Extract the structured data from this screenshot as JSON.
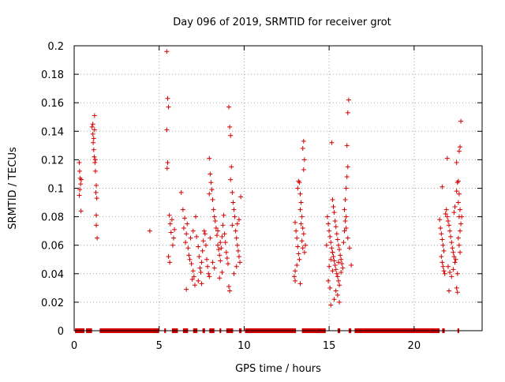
{
  "chart_data": {
    "type": "scatter",
    "title": "Day 096 of 2019, SRMTID for receiver grot",
    "xlabel": "GPS time / hours",
    "ylabel": "SRMTID / TECUs",
    "xlim": [
      0,
      24
    ],
    "ylim": [
      0,
      0.2
    ],
    "xticks": [
      0,
      5,
      10,
      15,
      20
    ],
    "yticks": [
      0,
      0.02,
      0.04,
      0.06,
      0.08,
      0.1,
      0.12,
      0.14,
      0.16,
      0.18,
      0.2
    ],
    "grid": true,
    "marker": "+",
    "color": "#d40000",
    "series": [
      {
        "values": [
          [
            0.3,
            0.118
          ],
          [
            0.32,
            0.112
          ],
          [
            0.35,
            0.107
          ],
          [
            0.38,
            0.103
          ],
          [
            0.3,
            0.095
          ],
          [
            0.4,
            0.084
          ],
          [
            0.33,
            0.099
          ],
          [
            0.42,
            0.106
          ],
          [
            1.05,
            0.143
          ],
          [
            1.1,
            0.138
          ],
          [
            1.12,
            0.132
          ],
          [
            1.15,
            0.127
          ],
          [
            1.2,
            0.151
          ],
          [
            1.18,
            0.122
          ],
          [
            1.22,
            0.118
          ],
          [
            1.25,
            0.112
          ],
          [
            1.1,
            0.145
          ],
          [
            1.3,
            0.102
          ],
          [
            1.28,
            0.097
          ],
          [
            1.33,
            0.093
          ],
          [
            1.3,
            0.081
          ],
          [
            1.3,
            0.074
          ],
          [
            1.35,
            0.065
          ],
          [
            1.2,
            0.141
          ],
          [
            1.15,
            0.135
          ],
          [
            1.25,
            0.12
          ],
          [
            4.45,
            0.07
          ],
          [
            5.45,
            0.196
          ],
          [
            5.5,
            0.163
          ],
          [
            5.55,
            0.157
          ],
          [
            5.45,
            0.141
          ],
          [
            5.5,
            0.118
          ],
          [
            5.47,
            0.114
          ],
          [
            5.6,
            0.081
          ],
          [
            5.65,
            0.075
          ],
          [
            5.7,
            0.069
          ],
          [
            5.8,
            0.06
          ],
          [
            5.55,
            0.052
          ],
          [
            5.62,
            0.048
          ],
          [
            5.75,
            0.078
          ],
          [
            5.85,
            0.065
          ],
          [
            5.9,
            0.071
          ],
          [
            6.3,
            0.097
          ],
          [
            6.4,
            0.085
          ],
          [
            6.5,
            0.079
          ],
          [
            6.45,
            0.072
          ],
          [
            6.6,
            0.068
          ],
          [
            6.55,
            0.062
          ],
          [
            6.7,
            0.058
          ],
          [
            6.75,
            0.053
          ],
          [
            6.8,
            0.05
          ],
          [
            6.9,
            0.047
          ],
          [
            7.0,
            0.042
          ],
          [
            7.05,
            0.038
          ],
          [
            6.95,
            0.036
          ],
          [
            7.1,
            0.032
          ],
          [
            6.85,
            0.065
          ],
          [
            7.0,
            0.07
          ],
          [
            6.65,
            0.075
          ],
          [
            7.15,
            0.08
          ],
          [
            7.2,
            0.066
          ],
          [
            7.3,
            0.059
          ],
          [
            7.35,
            0.052
          ],
          [
            7.4,
            0.044
          ],
          [
            7.45,
            0.041
          ],
          [
            7.5,
            0.048
          ],
          [
            7.55,
            0.056
          ],
          [
            7.6,
            0.063
          ],
          [
            7.65,
            0.07
          ],
          [
            7.7,
            0.068
          ],
          [
            7.75,
            0.06
          ],
          [
            7.8,
            0.05
          ],
          [
            7.85,
            0.045
          ],
          [
            7.9,
            0.04
          ],
          [
            7.95,
            0.038
          ],
          [
            7.3,
            0.035
          ],
          [
            7.5,
            0.033
          ],
          [
            6.6,
            0.029
          ],
          [
            7.95,
            0.121
          ],
          [
            8.0,
            0.11
          ],
          [
            8.05,
            0.104
          ],
          [
            8.1,
            0.099
          ],
          [
            7.95,
            0.096
          ],
          [
            8.15,
            0.092
          ],
          [
            8.2,
            0.085
          ],
          [
            8.25,
            0.08
          ],
          [
            8.3,
            0.077
          ],
          [
            8.35,
            0.072
          ],
          [
            8.4,
            0.067
          ],
          [
            8.45,
            0.06
          ],
          [
            8.5,
            0.057
          ],
          [
            8.55,
            0.053
          ],
          [
            8.6,
            0.049
          ],
          [
            8.15,
            0.048
          ],
          [
            8.25,
            0.044
          ],
          [
            8.0,
            0.065
          ],
          [
            8.45,
            0.07
          ],
          [
            8.6,
            0.062
          ],
          [
            8.65,
            0.058
          ],
          [
            8.7,
            0.066
          ],
          [
            8.75,
            0.074
          ],
          [
            8.8,
            0.081
          ],
          [
            8.85,
            0.068
          ],
          [
            8.9,
            0.062
          ],
          [
            8.95,
            0.055
          ],
          [
            9.0,
            0.051
          ],
          [
            9.05,
            0.047
          ],
          [
            8.7,
            0.041
          ],
          [
            8.55,
            0.037
          ],
          [
            9.1,
            0.157
          ],
          [
            9.15,
            0.143
          ],
          [
            9.2,
            0.137
          ],
          [
            9.25,
            0.115
          ],
          [
            9.2,
            0.106
          ],
          [
            9.3,
            0.097
          ],
          [
            9.35,
            0.09
          ],
          [
            9.4,
            0.085
          ],
          [
            9.45,
            0.08
          ],
          [
            9.3,
            0.074
          ],
          [
            9.5,
            0.07
          ],
          [
            9.55,
            0.065
          ],
          [
            9.6,
            0.06
          ],
          [
            9.65,
            0.056
          ],
          [
            9.7,
            0.052
          ],
          [
            9.75,
            0.048
          ],
          [
            9.55,
            0.045
          ],
          [
            9.4,
            0.04
          ],
          [
            9.1,
            0.031
          ],
          [
            9.15,
            0.028
          ],
          [
            9.8,
            0.094
          ],
          [
            9.7,
            0.078
          ],
          [
            9.6,
            0.075
          ],
          [
            13.0,
            0.076
          ],
          [
            13.05,
            0.07
          ],
          [
            13.1,
            0.065
          ],
          [
            13.15,
            0.059
          ],
          [
            13.2,
            0.054
          ],
          [
            13.25,
            0.05
          ],
          [
            13.1,
            0.046
          ],
          [
            13.0,
            0.042
          ],
          [
            12.95,
            0.038
          ],
          [
            13.0,
            0.035
          ],
          [
            13.15,
            0.1
          ],
          [
            13.2,
            0.105
          ],
          [
            13.25,
            0.104
          ],
          [
            13.3,
            0.096
          ],
          [
            13.35,
            0.09
          ],
          [
            13.3,
            0.085
          ],
          [
            13.4,
            0.08
          ],
          [
            13.35,
            0.075
          ],
          [
            13.45,
            0.072
          ],
          [
            13.5,
            0.068
          ],
          [
            13.4,
            0.063
          ],
          [
            13.45,
            0.058
          ],
          [
            13.5,
            0.133
          ],
          [
            13.45,
            0.128
          ],
          [
            13.55,
            0.12
          ],
          [
            13.5,
            0.113
          ],
          [
            13.6,
            0.06
          ],
          [
            13.55,
            0.055
          ],
          [
            13.3,
            0.033
          ],
          [
            14.9,
            0.08
          ],
          [
            14.95,
            0.075
          ],
          [
            15.0,
            0.07
          ],
          [
            15.05,
            0.066
          ],
          [
            15.1,
            0.062
          ],
          [
            15.15,
            0.058
          ],
          [
            15.2,
            0.055
          ],
          [
            15.25,
            0.052
          ],
          [
            15.3,
            0.049
          ],
          [
            15.35,
            0.046
          ],
          [
            15.4,
            0.043
          ],
          [
            15.45,
            0.04
          ],
          [
            15.5,
            0.038
          ],
          [
            15.55,
            0.035
          ],
          [
            15.6,
            0.032
          ],
          [
            15.4,
            0.028
          ],
          [
            15.5,
            0.025
          ],
          [
            15.3,
            0.022
          ],
          [
            15.1,
            0.018
          ],
          [
            15.6,
            0.02
          ],
          [
            15.0,
            0.045
          ],
          [
            15.1,
            0.05
          ],
          [
            15.2,
            0.042
          ],
          [
            14.95,
            0.035
          ],
          [
            15.05,
            0.03
          ],
          [
            15.15,
            0.132
          ],
          [
            15.2,
            0.092
          ],
          [
            15.25,
            0.087
          ],
          [
            15.3,
            0.083
          ],
          [
            15.35,
            0.077
          ],
          [
            15.4,
            0.073
          ],
          [
            15.45,
            0.068
          ],
          [
            15.5,
            0.064
          ],
          [
            15.55,
            0.06
          ],
          [
            15.6,
            0.057
          ],
          [
            15.65,
            0.053
          ],
          [
            15.7,
            0.05
          ],
          [
            15.75,
            0.047
          ],
          [
            15.8,
            0.044
          ],
          [
            15.7,
            0.041
          ],
          [
            15.85,
            0.062
          ],
          [
            15.9,
            0.07
          ],
          [
            15.95,
            0.077
          ],
          [
            16.0,
            0.08
          ],
          [
            15.9,
            0.085
          ],
          [
            15.95,
            0.092
          ],
          [
            16.0,
            0.1
          ],
          [
            16.05,
            0.108
          ],
          [
            16.1,
            0.115
          ],
          [
            16.05,
            0.13
          ],
          [
            16.1,
            0.153
          ],
          [
            16.15,
            0.162
          ],
          [
            16.0,
            0.072
          ],
          [
            16.1,
            0.065
          ],
          [
            16.2,
            0.058
          ],
          [
            16.3,
            0.046
          ],
          [
            15.2,
            0.055
          ],
          [
            14.85,
            0.06
          ],
          [
            15.55,
            0.048
          ]
        ]
      },
      {
        "values": [
          [
            21.5,
            0.078
          ],
          [
            21.55,
            0.072
          ],
          [
            21.6,
            0.068
          ],
          [
            21.65,
            0.064
          ],
          [
            21.7,
            0.06
          ],
          [
            21.75,
            0.056
          ],
          [
            21.6,
            0.052
          ],
          [
            21.65,
            0.048
          ],
          [
            21.7,
            0.045
          ],
          [
            21.75,
            0.042
          ],
          [
            21.8,
            0.04
          ],
          [
            21.65,
            0.101
          ],
          [
            21.85,
            0.082
          ],
          [
            21.9,
            0.085
          ],
          [
            21.95,
            0.08
          ],
          [
            22.0,
            0.077
          ],
          [
            22.05,
            0.074
          ],
          [
            22.1,
            0.07
          ],
          [
            22.15,
            0.066
          ],
          [
            22.2,
            0.062
          ],
          [
            22.25,
            0.058
          ],
          [
            22.3,
            0.055
          ],
          [
            22.35,
            0.052
          ],
          [
            22.4,
            0.048
          ],
          [
            22.0,
            0.045
          ],
          [
            22.1,
            0.041
          ],
          [
            22.2,
            0.038
          ],
          [
            22.3,
            0.043
          ],
          [
            22.45,
            0.05
          ],
          [
            21.95,
            0.121
          ],
          [
            22.05,
            0.028
          ],
          [
            22.4,
            0.087
          ],
          [
            22.5,
            0.098
          ],
          [
            22.55,
            0.104
          ],
          [
            22.6,
            0.105
          ],
          [
            22.65,
            0.096
          ],
          [
            22.6,
            0.09
          ],
          [
            22.7,
            0.085
          ],
          [
            22.65,
            0.08
          ],
          [
            22.75,
            0.075
          ],
          [
            22.7,
            0.07
          ],
          [
            22.6,
            0.065
          ],
          [
            22.65,
            0.06
          ],
          [
            22.7,
            0.055
          ],
          [
            22.55,
            0.04
          ],
          [
            22.5,
            0.03
          ],
          [
            22.55,
            0.027
          ],
          [
            22.65,
            0.126
          ],
          [
            22.7,
            0.129
          ],
          [
            22.75,
            0.147
          ],
          [
            22.8,
            0.08
          ],
          [
            22.5,
            0.118
          ],
          [
            22.35,
            0.083
          ]
        ]
      }
    ],
    "zero_segments": [
      [
        0.05,
        0.6
      ],
      [
        0.7,
        1.05
      ],
      [
        1.5,
        5.0
      ],
      [
        5.3,
        5.4
      ],
      [
        5.75,
        6.1
      ],
      [
        6.4,
        6.7
      ],
      [
        7.0,
        7.25
      ],
      [
        7.55,
        7.7
      ],
      [
        7.95,
        8.25
      ],
      [
        8.55,
        8.65
      ],
      [
        8.95,
        9.35
      ],
      [
        9.7,
        9.85
      ],
      [
        10.05,
        13.05
      ],
      [
        13.4,
        14.8
      ],
      [
        15.5,
        15.65
      ],
      [
        16.15,
        16.3
      ],
      [
        16.5,
        21.5
      ],
      [
        21.65,
        21.8
      ],
      [
        22.55,
        22.65
      ]
    ]
  }
}
